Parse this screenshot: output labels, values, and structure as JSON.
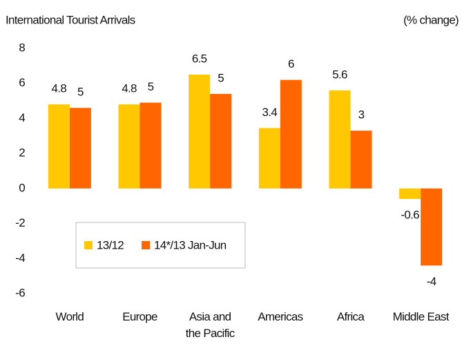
{
  "chart_data": {
    "type": "bar",
    "title": "International Tourist Arrivals",
    "subtitle": "(% change)",
    "categories": [
      "World",
      "Europe",
      "Asia and\nthe Pacific",
      "Americas",
      "Africa",
      "Middle East"
    ],
    "series": [
      {
        "name": "13/12",
        "color": "#ffc800",
        "values": [
          4.8,
          4.8,
          6.5,
          3.45,
          5.6,
          -0.6
        ],
        "value_labels": [
          "4.8",
          "4.8",
          "6.5",
          "3.4",
          "5.6",
          "-0.6"
        ]
      },
      {
        "name": "14*/13 Jan-Jun",
        "color": "#ff6600",
        "values": [
          4.6,
          4.9,
          5.4,
          6.2,
          3.3,
          -4.4
        ],
        "value_labels": [
          "5",
          "5",
          "5",
          "6",
          "3",
          "-4"
        ]
      }
    ],
    "ylim": [
      -6,
      8
    ],
    "yticks": [
      -6,
      -4,
      -2,
      0,
      2,
      4,
      6,
      8
    ],
    "legend": "lower left"
  }
}
